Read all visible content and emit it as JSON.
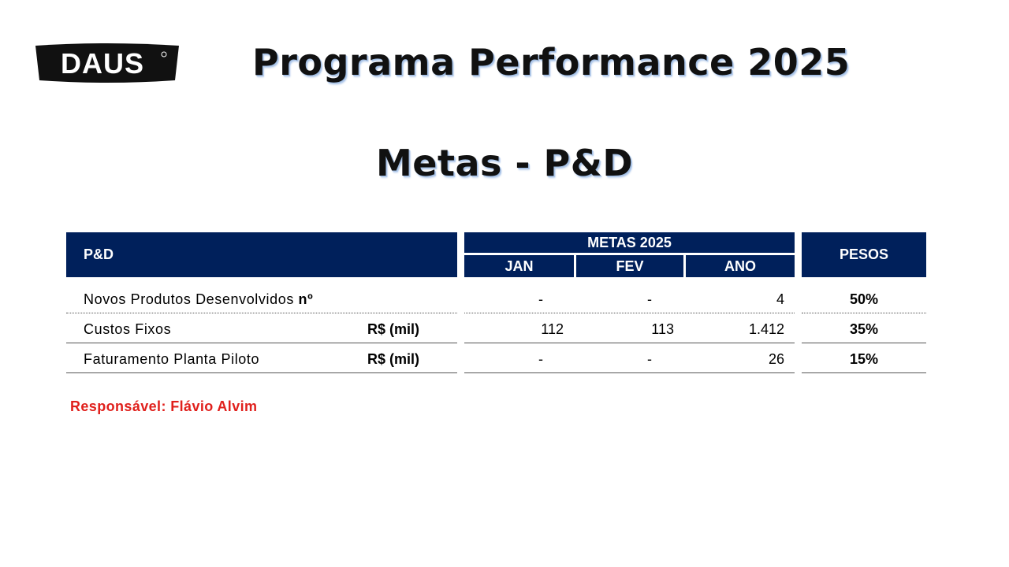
{
  "logo": {
    "text": "DAUS"
  },
  "title": "Programa Performance 2025",
  "subtitle": "Metas - P&D",
  "table": {
    "header": {
      "area": "P&D",
      "group": "METAS 2025",
      "months": [
        "JAN",
        "FEV",
        "ANO"
      ],
      "weights": "PESOS"
    },
    "rows": [
      {
        "label": "Novos Produtos Desenvolvidos",
        "unit": "nº",
        "jan": "-",
        "fev": "-",
        "ano": "4",
        "peso": "50%"
      },
      {
        "label": "Custos Fixos",
        "unit": "R$ (mil)",
        "jan": "112",
        "fev": "113",
        "ano": "1.412",
        "peso": "35%"
      },
      {
        "label": "Faturamento Planta Piloto",
        "unit": "R$ (mil)",
        "jan": "-",
        "fev": "-",
        "ano": "26",
        "peso": "15%"
      }
    ]
  },
  "responsavel": {
    "label": "Responsável:",
    "name": "Flávio Alvim"
  },
  "colors": {
    "header_bg": "#00205b",
    "accent_red": "#e0201c"
  }
}
